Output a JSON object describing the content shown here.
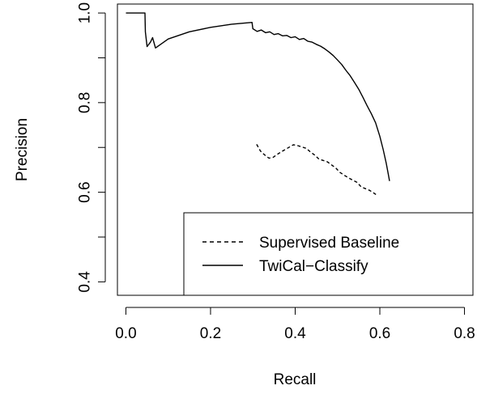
{
  "chart_data": {
    "type": "line",
    "title": "",
    "xlabel": "Recall",
    "ylabel": "Precision",
    "xlim": [
      -0.02,
      0.82
    ],
    "ylim": [
      0.37,
      1.02
    ],
    "x_ticks": [
      {
        "value": 0.0,
        "label": "0.0"
      },
      {
        "value": 0.2,
        "label": "0.2"
      },
      {
        "value": 0.4,
        "label": "0.4"
      },
      {
        "value": 0.6,
        "label": "0.6"
      },
      {
        "value": 0.8,
        "label": "0.8"
      }
    ],
    "y_ticks": [
      {
        "value": 0.4,
        "label": "0.4"
      },
      {
        "value": 0.6,
        "label": "0.6"
      },
      {
        "value": 0.8,
        "label": "0.8"
      },
      {
        "value": 1.0,
        "label": "1.0"
      }
    ],
    "grid": false,
    "legend_position": "bottom-right",
    "series": [
      {
        "name": "Supervised Baseline",
        "line_style": "dashed",
        "color": "#000000",
        "points": [
          [
            0.309,
            0.707
          ],
          [
            0.318,
            0.692
          ],
          [
            0.328,
            0.683
          ],
          [
            0.338,
            0.676
          ],
          [
            0.348,
            0.678
          ],
          [
            0.36,
            0.686
          ],
          [
            0.372,
            0.693
          ],
          [
            0.385,
            0.7
          ],
          [
            0.396,
            0.706
          ],
          [
            0.406,
            0.704
          ],
          [
            0.416,
            0.701
          ],
          [
            0.426,
            0.698
          ],
          [
            0.436,
            0.69
          ],
          [
            0.446,
            0.683
          ],
          [
            0.456,
            0.674
          ],
          [
            0.466,
            0.671
          ],
          [
            0.476,
            0.668
          ],
          [
            0.486,
            0.661
          ],
          [
            0.496,
            0.654
          ],
          [
            0.506,
            0.644
          ],
          [
            0.516,
            0.638
          ],
          [
            0.526,
            0.632
          ],
          [
            0.536,
            0.627
          ],
          [
            0.546,
            0.622
          ],
          [
            0.556,
            0.612
          ],
          [
            0.566,
            0.608
          ],
          [
            0.576,
            0.604
          ],
          [
            0.586,
            0.598
          ],
          [
            0.595,
            0.592
          ]
        ]
      },
      {
        "name": "TwiCal−Classify",
        "line_style": "solid",
        "color": "#000000",
        "points": [
          [
            0.0,
            1.0
          ],
          [
            0.045,
            1.0
          ],
          [
            0.046,
            0.958
          ],
          [
            0.05,
            0.925
          ],
          [
            0.058,
            0.935
          ],
          [
            0.063,
            0.945
          ],
          [
            0.07,
            0.922
          ],
          [
            0.1,
            0.942
          ],
          [
            0.15,
            0.958
          ],
          [
            0.2,
            0.968
          ],
          [
            0.25,
            0.975
          ],
          [
            0.298,
            0.979
          ],
          [
            0.3,
            0.965
          ],
          [
            0.31,
            0.959
          ],
          [
            0.32,
            0.962
          ],
          [
            0.33,
            0.956
          ],
          [
            0.34,
            0.958
          ],
          [
            0.35,
            0.952
          ],
          [
            0.36,
            0.954
          ],
          [
            0.37,
            0.949
          ],
          [
            0.38,
            0.95
          ],
          [
            0.39,
            0.945
          ],
          [
            0.4,
            0.947
          ],
          [
            0.41,
            0.941
          ],
          [
            0.42,
            0.943
          ],
          [
            0.43,
            0.937
          ],
          [
            0.44,
            0.935
          ],
          [
            0.45,
            0.93
          ],
          [
            0.46,
            0.926
          ],
          [
            0.47,
            0.92
          ],
          [
            0.48,
            0.913
          ],
          [
            0.49,
            0.905
          ],
          [
            0.5,
            0.895
          ],
          [
            0.51,
            0.885
          ],
          [
            0.52,
            0.872
          ],
          [
            0.53,
            0.86
          ],
          [
            0.54,
            0.845
          ],
          [
            0.55,
            0.83
          ],
          [
            0.56,
            0.812
          ],
          [
            0.57,
            0.793
          ],
          [
            0.58,
            0.775
          ],
          [
            0.59,
            0.755
          ],
          [
            0.6,
            0.725
          ],
          [
            0.608,
            0.695
          ],
          [
            0.615,
            0.665
          ],
          [
            0.62,
            0.64
          ],
          [
            0.623,
            0.625
          ]
        ]
      }
    ]
  }
}
